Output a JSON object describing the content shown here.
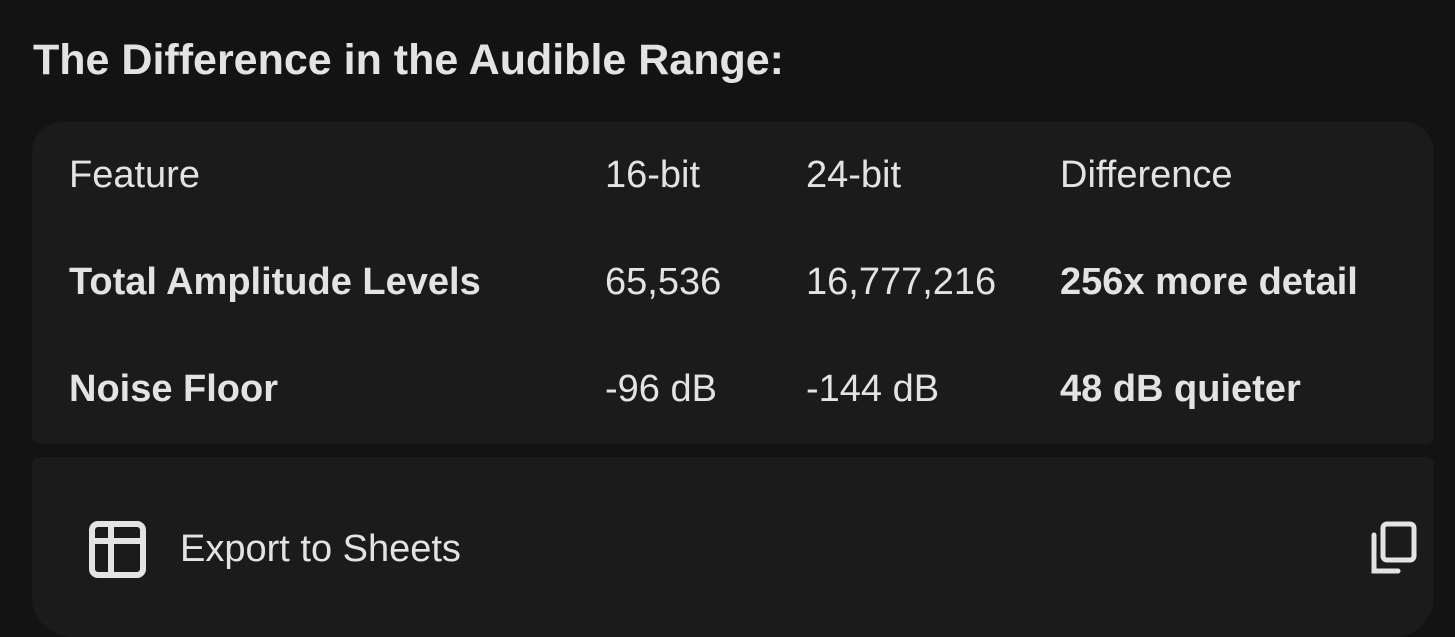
{
  "title": "The Difference in the Audible Range:",
  "table": {
    "headers": [
      "Feature",
      "16-bit",
      "24-bit",
      "Difference"
    ],
    "rows": [
      [
        "Total Amplitude Levels",
        "65,536",
        "16,777,216",
        "256x more detail"
      ],
      [
        "Noise Floor",
        "-96 dB",
        "-144 dB",
        "48 dB quieter"
      ]
    ]
  },
  "actions": {
    "export_label": "Export to Sheets",
    "export_icon": "table-grid-icon",
    "copy_icon": "copy-icon"
  }
}
